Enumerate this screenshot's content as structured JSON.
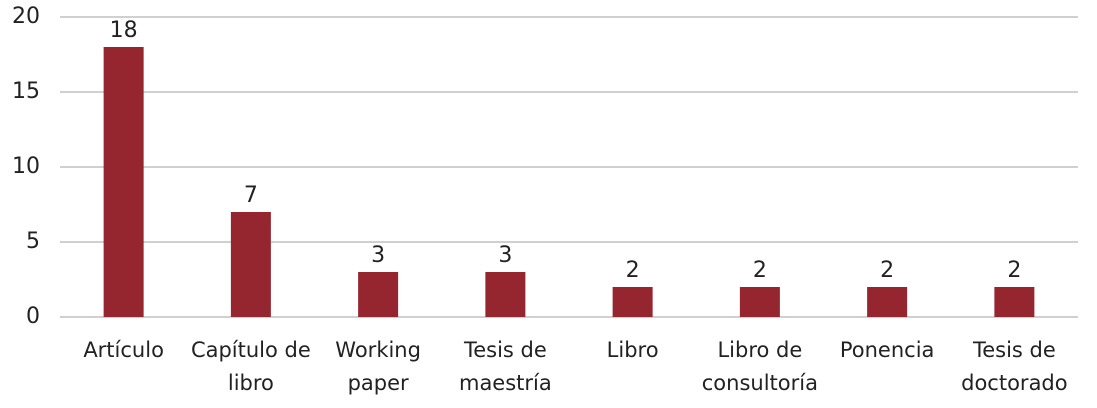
{
  "chart_data": {
    "type": "bar",
    "categories": [
      "Artículo",
      "Capítulo de libro",
      "Working paper",
      "Tesis de maestría",
      "Libro",
      "Libro de consultoría",
      "Ponencia",
      "Tesis de doctorado"
    ],
    "values": [
      18,
      7,
      3,
      3,
      2,
      2,
      2,
      2
    ],
    "color": "#952630",
    "ylim": [
      0,
      20
    ],
    "yticks": [
      0,
      5,
      10,
      15,
      20
    ],
    "grid": true
  }
}
